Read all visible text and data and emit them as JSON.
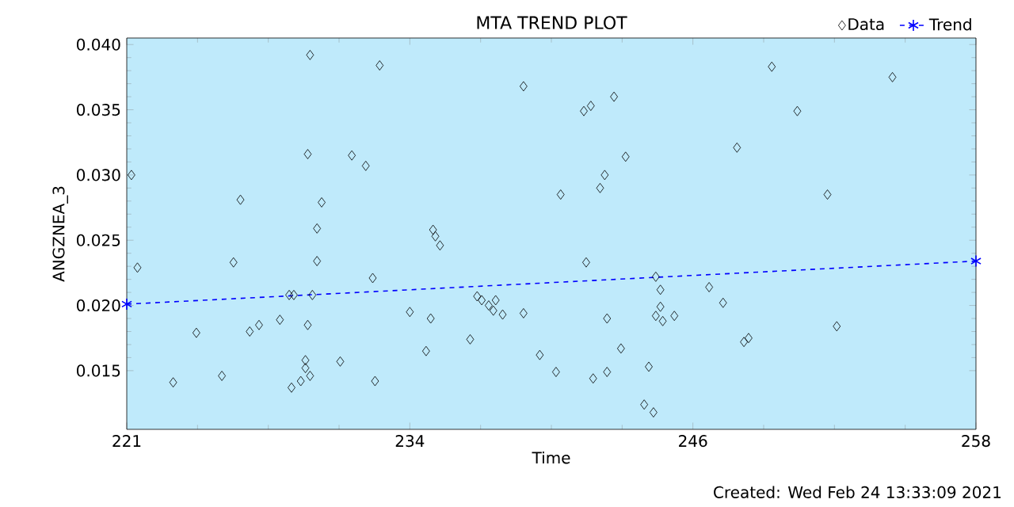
{
  "chart_data": {
    "type": "scatter",
    "title": "MTA TREND PLOT",
    "xlabel": "Time",
    "ylabel": "ANGZNEA_3",
    "annotations": [
      "Created: Wed Feb 24 13:33:09 2021"
    ],
    "xlim": [
      221.4,
      258
    ],
    "ylim": [
      0.0105,
      0.0405
    ],
    "xticks": [
      {
        "value": 221.4,
        "label": "221"
      },
      {
        "value": 233.6,
        "label": "234"
      },
      {
        "value": 245.8,
        "label": "246"
      },
      {
        "value": 258,
        "label": "258"
      }
    ],
    "yticks": [
      {
        "value": 0.015,
        "label": "0.015"
      },
      {
        "value": 0.02,
        "label": "0.020"
      },
      {
        "value": 0.025,
        "label": "0.025"
      },
      {
        "value": 0.03,
        "label": "0.030"
      },
      {
        "value": 0.035,
        "label": "0.035"
      },
      {
        "value": 0.04,
        "label": "0.040"
      }
    ],
    "grid": false,
    "legend": "top right",
    "series": [
      {
        "name": "Data",
        "color": "#000000",
        "marker": "diamond",
        "x": [
          221.6,
          221.86,
          223.4,
          224.4,
          225.5,
          226.0,
          226.3,
          226.7,
          227.1,
          228.0,
          228.4,
          228.6,
          228.5,
          228.9,
          229.1,
          229.1,
          229.3,
          229.3,
          229.2,
          229.2,
          229.4,
          229.6,
          229.6,
          229.8,
          230.6,
          231.1,
          231.7,
          232.0,
          232.1,
          232.3,
          233.6,
          238.5,
          241.1,
          241.4,
          242.4,
          242.9,
          242.0,
          241.8,
          240.1,
          234.6,
          234.7,
          234.9,
          241.2,
          244.2,
          244.4,
          234.5,
          234.3,
          236.2,
          236.5,
          236.7,
          237.0,
          237.3,
          237.2,
          237.6,
          238.5,
          239.2,
          239.9,
          241.5,
          242.1,
          242.1,
          242.7,
          243.9,
          243.7,
          244.1,
          244.4,
          244.2,
          244.5,
          245.0,
          246.5,
          247.1,
          248.0,
          248.2,
          247.7,
          249.2,
          250.3,
          251.6,
          252.0,
          254.4
        ],
        "values": [
          0.03,
          0.0229,
          0.0141,
          0.0179,
          0.0146,
          0.0233,
          0.0281,
          0.018,
          0.0185,
          0.0189,
          0.0208,
          0.0208,
          0.0137,
          0.0142,
          0.0152,
          0.0158,
          0.0146,
          0.0392,
          0.0316,
          0.0185,
          0.0208,
          0.0234,
          0.0259,
          0.0279,
          0.0157,
          0.0315,
          0.0307,
          0.0221,
          0.0142,
          0.0384,
          0.0195,
          0.0368,
          0.0349,
          0.0353,
          0.036,
          0.0314,
          0.03,
          0.029,
          0.0285,
          0.0258,
          0.0253,
          0.0246,
          0.0233,
          0.0222,
          0.0212,
          0.019,
          0.0165,
          0.0174,
          0.0207,
          0.0204,
          0.02,
          0.0204,
          0.0196,
          0.0193,
          0.0194,
          0.0162,
          0.0149,
          0.0144,
          0.0149,
          0.019,
          0.0167,
          0.0153,
          0.0124,
          0.0118,
          0.0199,
          0.0192,
          0.0188,
          0.0192,
          0.0214,
          0.0202,
          0.0172,
          0.0175,
          0.0321,
          0.0383,
          0.0349,
          0.0285,
          0.0184,
          0.0375
        ]
      },
      {
        "name": "Trend",
        "type": "line",
        "color": "#0000ff",
        "marker": "cross",
        "line_style": "dashed",
        "x": [
          221.4,
          258
        ],
        "values": [
          0.0201,
          0.0234
        ]
      }
    ]
  }
}
